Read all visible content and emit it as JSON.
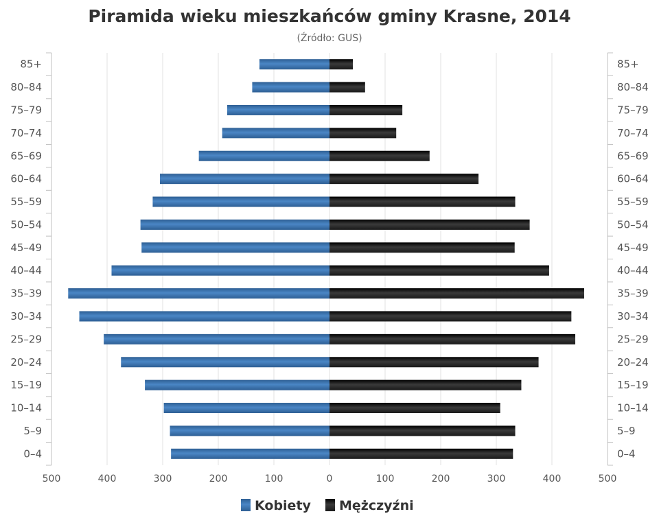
{
  "colors": {
    "female": "#4a86c5",
    "male": "#1a1a1a"
  },
  "chart_data": {
    "type": "bar",
    "orientation": "horizontal-diverging",
    "title": "Piramida wieku mieszkańców gminy Krasne, 2014",
    "subtitle": "(Źródło: GUS)",
    "categories": [
      "85+",
      "80–84",
      "75–79",
      "70–74",
      "65–69",
      "60–64",
      "55–59",
      "50–54",
      "45–49",
      "40–44",
      "35–39",
      "30–34",
      "25–29",
      "20–24",
      "15–19",
      "10–14",
      "5–9",
      "0–4"
    ],
    "series": [
      {
        "name": "Kobiety",
        "side": "left",
        "values": [
          126,
          139,
          184,
          193,
          235,
          305,
          318,
          340,
          338,
          392,
          470,
          450,
          406,
          375,
          332,
          298,
          287,
          285
        ]
      },
      {
        "name": "Mężczyźni",
        "side": "right",
        "values": [
          42,
          64,
          131,
          120,
          180,
          268,
          334,
          360,
          333,
          395,
          458,
          435,
          442,
          376,
          345,
          307,
          334,
          330
        ]
      }
    ],
    "xlim": [
      -500,
      500
    ],
    "xticks": [
      "500",
      "400",
      "300",
      "200",
      "100",
      "0",
      "100",
      "200",
      "300",
      "400",
      "500"
    ],
    "grid": true,
    "legend": "bottom"
  }
}
